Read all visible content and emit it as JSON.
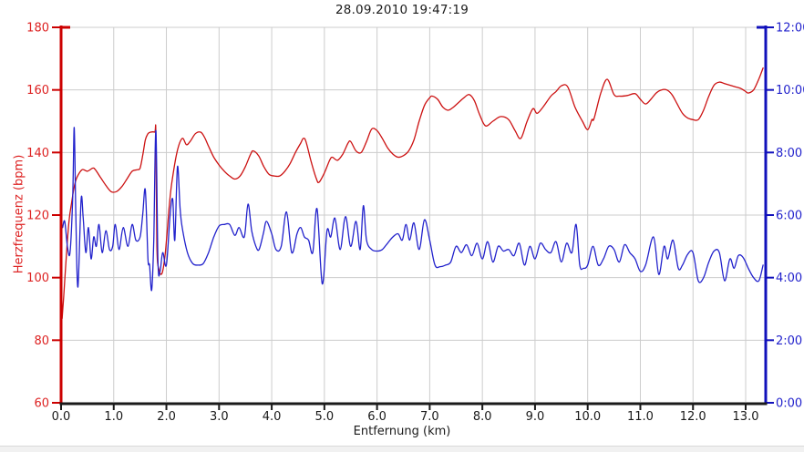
{
  "chart_data": {
    "type": "line",
    "title": "28.09.2010 19:47:19",
    "xlabel": "Entfernung (km)",
    "x_axis": {
      "min": 0,
      "max": 13.38,
      "tick_values": [
        0,
        1,
        2,
        3,
        4,
        5,
        6,
        7,
        8,
        9,
        10,
        11,
        12,
        13
      ],
      "tick_labels": [
        "0.0",
        "1.0",
        "2.0",
        "3.0",
        "4.0",
        "5.0",
        "6.0",
        "7.0",
        "8.0",
        "9.0",
        "10.0",
        "11.0",
        "12.0",
        "13.0"
      ],
      "axis_color": "#1a1a1a",
      "text_color": "#1a1a1a"
    },
    "y_axis_left": {
      "label": "Herzfrequenz (bpm)",
      "min": 60,
      "max": 180,
      "tick_values": [
        60,
        80,
        100,
        120,
        140,
        160,
        180
      ],
      "axis_color": "#cc0000",
      "text_color": "#dd2222"
    },
    "y_axis_right": {
      "min_minutes": 0,
      "max_minutes": 12,
      "tick_minutes": [
        0,
        2,
        4,
        6,
        8,
        10,
        12
      ],
      "tick_labels": [
        "0:00",
        "2:00",
        "4:00",
        "6:00",
        "8:00",
        "10:00",
        "12:00"
      ],
      "axis_color": "#1111bb",
      "text_color": "#2222cc"
    },
    "grid": {
      "color": "#cccccc",
      "vertical_every_km": 1,
      "horizontal_every_bpm": 20
    },
    "series": [
      {
        "id": "heart_rate",
        "axis": "left",
        "unit": "bpm",
        "color": "#cc1111",
        "x": [
          0.02,
          0.05,
          0.1,
          0.15,
          0.2,
          0.25,
          0.3,
          0.4,
          0.5,
          0.6,
          0.65,
          0.75,
          0.85,
          0.95,
          1.05,
          1.15,
          1.25,
          1.35,
          1.45,
          1.5,
          1.55,
          1.6,
          1.65,
          1.7,
          1.78,
          1.8,
          1.82,
          1.86,
          1.92,
          1.98,
          2.05,
          2.1,
          2.2,
          2.3,
          2.38,
          2.45,
          2.55,
          2.65,
          2.72,
          2.8,
          2.9,
          3.0,
          3.1,
          3.2,
          3.3,
          3.4,
          3.5,
          3.6,
          3.65,
          3.75,
          3.85,
          3.95,
          4.05,
          4.15,
          4.25,
          4.35,
          4.45,
          4.55,
          4.6,
          4.65,
          4.75,
          4.85,
          4.9,
          5.0,
          5.1,
          5.15,
          5.25,
          5.35,
          5.45,
          5.5,
          5.6,
          5.7,
          5.8,
          5.9,
          6.0,
          6.1,
          6.2,
          6.3,
          6.4,
          6.5,
          6.6,
          6.7,
          6.8,
          6.9,
          7.0,
          7.05,
          7.15,
          7.25,
          7.35,
          7.45,
          7.55,
          7.65,
          7.75,
          7.85,
          7.95,
          8.06,
          8.2,
          8.35,
          8.5,
          8.62,
          8.73,
          8.85,
          8.96,
          9.04,
          9.15,
          9.3,
          9.4,
          9.5,
          9.62,
          9.76,
          9.9,
          10.0,
          10.08,
          10.12,
          10.25,
          10.37,
          10.5,
          10.6,
          10.75,
          10.9,
          11.0,
          11.1,
          11.2,
          11.3,
          11.4,
          11.5,
          11.6,
          11.7,
          11.8,
          11.9,
          12.0,
          12.1,
          12.2,
          12.3,
          12.4,
          12.5,
          12.6,
          12.7,
          12.8,
          12.9,
          13.0,
          13.05,
          13.15,
          13.25,
          13.33
        ],
        "y": [
          87,
          94,
          107,
          118,
          124,
          129,
          132,
          134.5,
          134,
          135,
          134.5,
          132,
          129.5,
          127.5,
          127.5,
          129,
          131.5,
          134,
          134.5,
          135,
          139,
          144,
          146,
          146.5,
          146.5,
          146,
          110,
          102.5,
          101.5,
          108,
          122,
          130,
          140,
          144.5,
          142.5,
          143.5,
          146,
          146.5,
          145,
          142,
          138.5,
          136,
          134,
          132.5,
          131.5,
          132.5,
          135.5,
          139.5,
          140.5,
          139,
          135.5,
          133,
          132.5,
          132.5,
          134,
          136.5,
          140,
          143,
          144.5,
          143.5,
          137,
          131.5,
          130.5,
          133.5,
          137.5,
          138.5,
          137.5,
          139.5,
          143,
          143.5,
          140.5,
          140,
          143.5,
          147.5,
          147,
          144.5,
          141.5,
          139.5,
          138.5,
          139,
          140.5,
          144,
          150,
          155,
          157.5,
          158,
          157,
          154.5,
          153.5,
          154.5,
          156,
          157.5,
          158.5,
          156.5,
          152,
          148.5,
          150,
          151.5,
          150.5,
          147,
          144.5,
          150,
          154,
          152.5,
          154.5,
          158,
          159.5,
          161.3,
          161,
          154.5,
          150,
          147.3,
          150.5,
          150.8,
          159,
          163.4,
          158.5,
          158,
          158.2,
          158.8,
          157,
          155.5,
          157,
          159,
          160,
          160,
          158.5,
          155.5,
          152.5,
          151,
          150.5,
          150.5,
          153.5,
          158,
          161.5,
          162.5,
          162,
          161.5,
          161,
          160.5,
          159.5,
          159,
          160,
          163.5,
          167
        ]
      },
      {
        "id": "pace_time",
        "axis": "right",
        "unit": "min",
        "color": "#2222cc",
        "x": [
          0.03,
          0.07,
          0.12,
          0.17,
          0.22,
          0.25,
          0.28,
          0.32,
          0.38,
          0.42,
          0.47,
          0.52,
          0.57,
          0.62,
          0.67,
          0.72,
          0.78,
          0.85,
          0.92,
          0.98,
          1.03,
          1.1,
          1.18,
          1.27,
          1.35,
          1.42,
          1.5,
          1.55,
          1.6,
          1.65,
          1.68,
          1.72,
          1.76,
          1.8,
          1.84,
          1.88,
          1.93,
          2.0,
          2.07,
          2.12,
          2.16,
          2.21,
          2.26,
          2.3,
          2.4,
          2.5,
          2.6,
          2.7,
          2.8,
          2.9,
          3.0,
          3.1,
          3.2,
          3.3,
          3.38,
          3.48,
          3.55,
          3.62,
          3.7,
          3.76,
          3.84,
          3.9,
          4.0,
          4.08,
          4.18,
          4.28,
          4.38,
          4.48,
          4.55,
          4.62,
          4.7,
          4.78,
          4.86,
          4.96,
          5.05,
          5.12,
          5.2,
          5.3,
          5.4,
          5.5,
          5.6,
          5.68,
          5.74,
          5.8,
          5.9,
          6.0,
          6.1,
          6.2,
          6.3,
          6.4,
          6.48,
          6.55,
          6.62,
          6.7,
          6.8,
          6.9,
          7.0,
          7.1,
          7.2,
          7.3,
          7.4,
          7.5,
          7.6,
          7.7,
          7.8,
          7.9,
          8.0,
          8.1,
          8.2,
          8.3,
          8.4,
          8.5,
          8.6,
          8.7,
          8.8,
          8.9,
          9.0,
          9.1,
          9.2,
          9.3,
          9.4,
          9.5,
          9.6,
          9.7,
          9.78,
          9.85,
          9.92,
          10.0,
          10.1,
          10.2,
          10.3,
          10.4,
          10.5,
          10.6,
          10.7,
          10.8,
          10.9,
          11.0,
          11.1,
          11.25,
          11.35,
          11.45,
          11.52,
          11.62,
          11.72,
          11.8,
          11.9,
          12.0,
          12.1,
          12.2,
          12.3,
          12.4,
          12.5,
          12.6,
          12.7,
          12.78,
          12.86,
          12.95,
          13.05,
          13.15,
          13.25,
          13.33
        ],
        "y": [
          5.6,
          5.8,
          5.0,
          4.8,
          6.5,
          8.8,
          6.0,
          3.7,
          6.5,
          5.9,
          4.8,
          5.6,
          4.6,
          5.3,
          5.0,
          5.7,
          4.8,
          5.5,
          4.9,
          5.0,
          5.7,
          4.9,
          5.6,
          5.0,
          5.7,
          5.2,
          5.3,
          6.0,
          6.8,
          4.6,
          4.4,
          3.6,
          5.2,
          8.7,
          4.5,
          4.2,
          4.8,
          4.4,
          6.0,
          6.5,
          5.2,
          7.55,
          6.2,
          5.6,
          4.8,
          4.45,
          4.4,
          4.45,
          4.8,
          5.3,
          5.65,
          5.7,
          5.7,
          5.35,
          5.6,
          5.3,
          6.35,
          5.5,
          5.0,
          4.9,
          5.4,
          5.8,
          5.4,
          4.9,
          5.0,
          6.1,
          4.8,
          5.4,
          5.6,
          5.3,
          5.2,
          4.8,
          6.2,
          3.8,
          5.5,
          5.3,
          5.9,
          4.9,
          5.95,
          5.0,
          5.8,
          4.9,
          6.3,
          5.2,
          4.9,
          4.85,
          4.9,
          5.1,
          5.3,
          5.4,
          5.2,
          5.7,
          5.2,
          5.75,
          4.9,
          5.85,
          5.2,
          4.4,
          4.35,
          4.4,
          4.5,
          5.0,
          4.8,
          5.05,
          4.7,
          5.1,
          4.6,
          5.15,
          4.5,
          5.0,
          4.85,
          4.9,
          4.7,
          5.1,
          4.4,
          5.0,
          4.6,
          5.1,
          4.9,
          4.8,
          5.15,
          4.5,
          5.1,
          4.8,
          5.7,
          4.4,
          4.3,
          4.4,
          5.0,
          4.4,
          4.6,
          5.0,
          4.9,
          4.5,
          5.05,
          4.8,
          4.6,
          4.2,
          4.4,
          5.3,
          4.1,
          5.0,
          4.6,
          5.2,
          4.3,
          4.4,
          4.75,
          4.8,
          3.9,
          4.0,
          4.5,
          4.85,
          4.8,
          3.9,
          4.6,
          4.3,
          4.7,
          4.65,
          4.3,
          4.0,
          3.9,
          4.4
        ]
      }
    ]
  }
}
